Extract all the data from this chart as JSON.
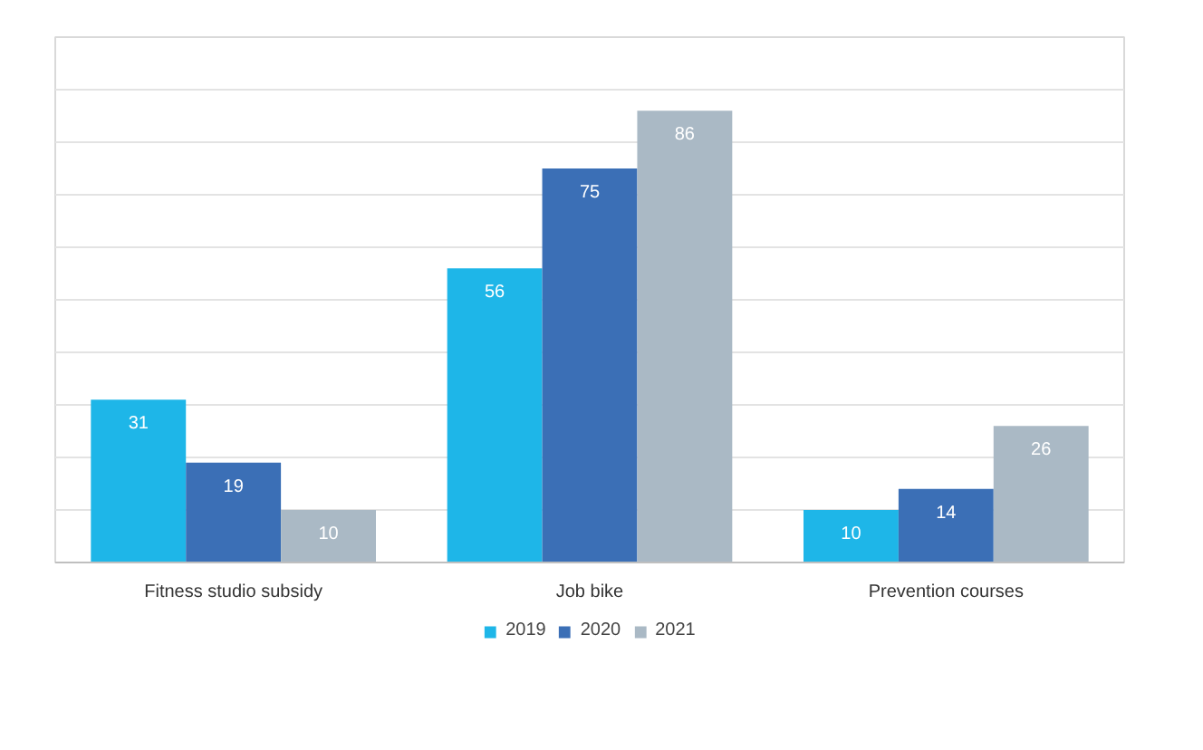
{
  "chart_data": {
    "type": "bar",
    "categories": [
      "Fitness studio subsidy",
      "Job bike",
      "Prevention courses"
    ],
    "series": [
      {
        "name": "2019",
        "color": "#1eb6e8",
        "values": [
          31,
          56,
          10
        ]
      },
      {
        "name": "2020",
        "color": "#3b6fb6",
        "values": [
          19,
          75,
          14
        ]
      },
      {
        "name": "2021",
        "color": "#aab9c5",
        "values": [
          10,
          86,
          26
        ]
      }
    ],
    "ylim": [
      0,
      100
    ],
    "yticks": [
      {
        "value": 0,
        "label": null
      },
      {
        "value": 10,
        "label": null
      },
      {
        "value": 20,
        "label": null
      },
      {
        "value": 30,
        "label": null
      },
      {
        "value": 40,
        "label": null
      },
      {
        "value": 50,
        "label": null
      },
      {
        "value": 60,
        "label": null
      },
      {
        "value": 70,
        "label": null
      },
      {
        "value": 80,
        "label": null
      },
      {
        "value": 90,
        "label": null
      },
      {
        "value": 100,
        "label": null
      }
    ],
    "tick_labels": "x",
    "grid": "y",
    "legend": "bottom",
    "data_labels": true
  }
}
